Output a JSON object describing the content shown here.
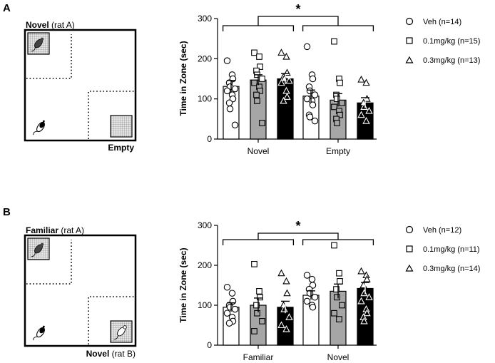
{
  "panels": [
    {
      "letter": "A",
      "arena": {
        "top_label_bold": "Novel",
        "top_label_rest": " (rat A)",
        "bottom_label_bold": "Empty",
        "bottom_label_rest": ""
      },
      "chart_data": {
        "type": "bar",
        "ylabel": "Time in Zone (sec)",
        "ylim": [
          0,
          300
        ],
        "yticks": [
          "0",
          "100",
          "200",
          "300"
        ],
        "categories": [
          "Novel",
          "Empty"
        ],
        "significance": "*",
        "series": [
          {
            "name": "Veh (n=14)",
            "marker": "circle",
            "fill": "#ffffff",
            "values": [
              131,
              107
            ],
            "sem": [
              15,
              15
            ],
            "points": [
              [
                195,
                160,
                150,
                140,
                130,
                125,
                120,
                110,
                100,
                90,
                75,
                35
              ],
              [
                230,
                160,
                150,
                130,
                120,
                110,
                100,
                95,
                85,
                60,
                55,
                45
              ]
            ]
          },
          {
            "name": "0.1mg/kg (n=15)",
            "marker": "square",
            "fill": "#a6a6a6",
            "values": [
              147,
              97
            ],
            "sem": [
              13,
              16
            ],
            "points": [
              [
                215,
                205,
                180,
                170,
                160,
                150,
                140,
                130,
                120,
                110,
                95,
                40
              ],
              [
                243,
                150,
                140,
                110,
                100,
                90,
                80,
                70,
                60,
                50,
                40
              ]
            ]
          },
          {
            "name": "0.3mg/kg (n=13)",
            "marker": "triangle",
            "fill": "#000000",
            "values": [
              150,
              90
            ],
            "sem": [
              13,
              13
            ],
            "points": [
              [
                215,
                205,
                165,
                155,
                150,
                145,
                140,
                120,
                105,
                95
              ],
              [
                148,
                140,
                100,
                90,
                80,
                70,
                60,
                45
              ]
            ]
          }
        ]
      }
    },
    {
      "letter": "B",
      "arena": {
        "top_label_bold": "Familiar",
        "top_label_rest": " (rat A)",
        "bottom_label_bold": "Novel",
        "bottom_label_rest": " (rat B)"
      },
      "chart_data": {
        "type": "bar",
        "ylabel": "Time in Zone (sec)",
        "ylim": [
          0,
          300
        ],
        "yticks": [
          "0",
          "100",
          "200",
          "300"
        ],
        "categories": [
          "Familiar",
          "Novel"
        ],
        "significance": "*",
        "series": [
          {
            "name": "Veh (n=12)",
            "marker": "circle",
            "fill": "#ffffff",
            "values": [
              95,
              125
            ],
            "sem": [
              11,
              11
            ],
            "points": [
              [
                145,
                130,
                110,
                100,
                95,
                90,
                80,
                70,
                60,
                55
              ],
              [
                175,
                165,
                150,
                140,
                130,
                120,
                110,
                100,
                95
              ]
            ]
          },
          {
            "name": "0.1mg/kg (n=11)",
            "marker": "square",
            "fill": "#a6a6a6",
            "values": [
              100,
              135
            ],
            "sem": [
              18,
              18
            ],
            "points": [
              [
                203,
                135,
                120,
                100,
                80,
                60,
                35
              ],
              [
                250,
                180,
                160,
                140,
                120,
                100,
                80,
                65
              ]
            ]
          },
          {
            "name": "0.3mg/kg (n=14)",
            "marker": "triangle",
            "fill": "#000000",
            "values": [
              95,
              142
            ],
            "sem": [
              15,
              15
            ],
            "points": [
              [
                180,
                160,
                130,
                100,
                90,
                70,
                50,
                40
              ],
              [
                185,
                175,
                165,
                150,
                130,
                120,
                110,
                90,
                80,
                70,
                60
              ]
            ]
          }
        ]
      }
    }
  ]
}
